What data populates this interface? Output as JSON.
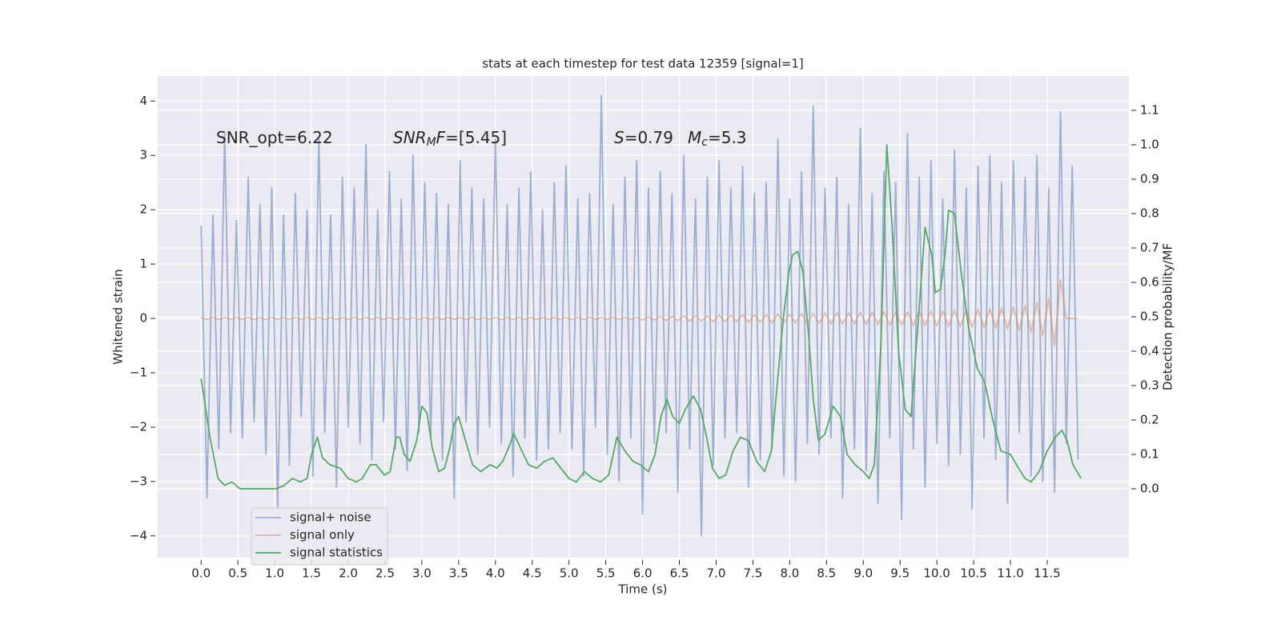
{
  "chart_data": {
    "type": "line",
    "title": "stats at each timestep for test data 12359 [signal=1]",
    "x_label": "Time (s)",
    "y_label": "Whitened strain",
    "y2_label": "Detection probability/MF",
    "xlim": [
      -0.59,
      12.61
    ],
    "ylim": [
      -4.4,
      4.46
    ],
    "y2lim": [
      -0.2,
      1.2
    ],
    "xticks": [
      {
        "value": 0,
        "label": "0.0"
      },
      {
        "value": 0.5,
        "label": "0.5"
      },
      {
        "value": 1,
        "label": "1.0"
      },
      {
        "value": 1.5,
        "label": "1.5"
      },
      {
        "value": 2,
        "label": "2.0"
      },
      {
        "value": 2.5,
        "label": "2.5"
      },
      {
        "value": 3,
        "label": "3.0"
      },
      {
        "value": 3.5,
        "label": "3.5"
      },
      {
        "value": 4,
        "label": "4.0"
      },
      {
        "value": 4.5,
        "label": "4.5"
      },
      {
        "value": 5,
        "label": "5.0"
      },
      {
        "value": 5.5,
        "label": "5.5"
      },
      {
        "value": 6,
        "label": "6.0"
      },
      {
        "value": 6.5,
        "label": "6.5"
      },
      {
        "value": 7,
        "label": "7.0"
      },
      {
        "value": 7.5,
        "label": "7.5"
      },
      {
        "value": 8,
        "label": "8.0"
      },
      {
        "value": 8.5,
        "label": "8.5"
      },
      {
        "value": 9,
        "label": "9.0"
      },
      {
        "value": 9.5,
        "label": "9.5"
      },
      {
        "value": 10,
        "label": "10.0"
      },
      {
        "value": 10.5,
        "label": "10.5"
      },
      {
        "value": 11,
        "label": "11.0"
      },
      {
        "value": 11.5,
        "label": "11.5"
      }
    ],
    "yticks": [
      {
        "value": -4,
        "label": "−4"
      },
      {
        "value": -3,
        "label": "−3"
      },
      {
        "value": -2,
        "label": "−2"
      },
      {
        "value": -1,
        "label": "−1"
      },
      0,
      1,
      2,
      3,
      4
    ],
    "y2ticks": [
      {
        "value": 0,
        "label": "0.0"
      },
      {
        "value": 0.1,
        "label": "0.1"
      },
      {
        "value": 0.2,
        "label": "0.2"
      },
      {
        "value": 0.3,
        "label": "0.3"
      },
      {
        "value": 0.4,
        "label": "0.4"
      },
      {
        "value": 0.5,
        "label": "0.5"
      },
      {
        "value": 0.6,
        "label": "0.6"
      },
      {
        "value": 0.7,
        "label": "0.7"
      },
      {
        "value": 0.8,
        "label": "0.8"
      },
      {
        "value": 0.9,
        "label": "0.9"
      },
      {
        "value": 1,
        "label": "1.0"
      },
      {
        "value": 1.1,
        "label": "1.1"
      }
    ],
    "grid": true,
    "legend": "lower left",
    "annotations": [
      {
        "parts": [
          {
            "text": "SNR_opt=6.22"
          }
        ]
      },
      {
        "parts": [
          {
            "text": "SNR",
            "italic": true
          },
          {
            "text": "M",
            "italic": true,
            "sub": true
          },
          {
            "text": "F",
            "italic": true
          },
          {
            "text": "=[5.45]"
          }
        ]
      },
      {
        "parts": [
          {
            "text": "S",
            "italic": true
          },
          {
            "text": "=0.79"
          }
        ]
      },
      {
        "parts": [
          {
            "text": "M",
            "italic": true
          },
          {
            "text": "c",
            "italic": true,
            "sub": true
          },
          {
            "text": "=5.3"
          }
        ]
      }
    ],
    "x": [
      0,
      0.08,
      0.16,
      0.24,
      0.32,
      0.4,
      0.48,
      0.56,
      0.64,
      0.72,
      0.8,
      0.88,
      0.96,
      1.04,
      1.12,
      1.2,
      1.28,
      1.36,
      1.44,
      1.52,
      1.6,
      1.68,
      1.76,
      1.84,
      1.92,
      2,
      2.08,
      2.16,
      2.24,
      2.32,
      2.4,
      2.48,
      2.56,
      2.64,
      2.72,
      2.8,
      2.88,
      2.96,
      3.04,
      3.12,
      3.2,
      3.28,
      3.36,
      3.44,
      3.52,
      3.6,
      3.68,
      3.76,
      3.84,
      3.92,
      4,
      4.08,
      4.16,
      4.24,
      4.32,
      4.4,
      4.48,
      4.56,
      4.64,
      4.72,
      4.8,
      4.88,
      4.96,
      5.04,
      5.12,
      5.2,
      5.28,
      5.36,
      5.44,
      5.52,
      5.6,
      5.68,
      5.76,
      5.84,
      5.92,
      6,
      6.08,
      6.16,
      6.24,
      6.32,
      6.4,
      6.48,
      6.56,
      6.64,
      6.72,
      6.8,
      6.88,
      6.96,
      7.04,
      7.12,
      7.2,
      7.28,
      7.36,
      7.44,
      7.52,
      7.6,
      7.68,
      7.76,
      7.84,
      7.92,
      8,
      8.08,
      8.16,
      8.24,
      8.32,
      8.4,
      8.48,
      8.56,
      8.64,
      8.72,
      8.8,
      8.88,
      8.96,
      9.04,
      9.12,
      9.2,
      9.28,
      9.36,
      9.44,
      9.52,
      9.6,
      9.68,
      9.76,
      9.84,
      9.92,
      10,
      10.08,
      10.16,
      10.24,
      10.32,
      10.4,
      10.48,
      10.56,
      10.64,
      10.72,
      10.8,
      10.88,
      10.96,
      11.04,
      11.12,
      11.2,
      11.28,
      11.36,
      11.44,
      11.52,
      11.6,
      11.68,
      11.76,
      11.84,
      11.92
    ],
    "series": [
      {
        "name": "signal+ noise",
        "color": "#4c72b0",
        "opacity": 0.5,
        "values": [
          1.7,
          -3.3,
          1.9,
          -2.4,
          3.4,
          -2.1,
          1.8,
          -2.2,
          2.6,
          -1.9,
          2.1,
          -2.5,
          2.4,
          -3.5,
          1.9,
          -2.7,
          2.3,
          -1.8,
          2.0,
          -2.9,
          3.3,
          -2.1,
          1.9,
          -3.1,
          2.6,
          -2.0,
          2.4,
          -2.3,
          3.2,
          -2.6,
          2.0,
          -1.9,
          2.7,
          -2.4,
          2.2,
          -2.8,
          3.0,
          -2.1,
          2.5,
          -2.2,
          2.3,
          -2.6,
          2.1,
          -3.3,
          2.9,
          -1.9,
          2.4,
          -2.5,
          2.2,
          -2.0,
          3.3,
          -2.3,
          2.1,
          -2.9,
          2.4,
          -2.2,
          2.7,
          -2.6,
          2.0,
          -2.4,
          2.5,
          -2.1,
          2.8,
          -2.4,
          2.2,
          -2.9,
          2.3,
          -2.0,
          4.1,
          -2.5,
          2.1,
          -3.0,
          2.6,
          -2.2,
          2.9,
          -3.6,
          2.4,
          -2.3,
          2.7,
          -2.1,
          2.3,
          -3.2,
          3.0,
          -2.4,
          2.2,
          -4.0,
          2.6,
          -2.7,
          2.9,
          -2.2,
          2.4,
          -2.1,
          2.8,
          -3.1,
          2.3,
          -2.6,
          2.5,
          -2.4,
          3.3,
          -2.9,
          2.2,
          -3.0,
          2.7,
          -2.3,
          3.9,
          -2.5,
          2.4,
          -2.2,
          2.6,
          -3.3,
          2.1,
          -2.4,
          3.5,
          -2.8,
          2.3,
          -3.4,
          2.7,
          -2.2,
          2.5,
          -3.7,
          3.4,
          -2.4,
          2.6,
          -3.1,
          2.9,
          -2.3,
          2.2,
          -2.7,
          3.1,
          -2.5,
          2.4,
          -3.5,
          2.8,
          -2.2,
          3.0,
          -2.6,
          2.5,
          -3.4,
          2.9,
          -2.1,
          2.6,
          -2.9,
          3.0,
          -3.0,
          2.4,
          -3.2,
          3.8,
          -2.3,
          2.8,
          -2.6
        ]
      },
      {
        "name": "signal only",
        "color": "#dd8452",
        "opacity": 0.5,
        "values": [
          0.02,
          -0.02,
          0.02,
          -0.02,
          0.02,
          -0.02,
          0.02,
          -0.02,
          0.02,
          -0.02,
          0.02,
          -0.02,
          0.02,
          -0.02,
          0.02,
          -0.02,
          0.02,
          -0.02,
          0.02,
          -0.02,
          0.02,
          -0.02,
          0.02,
          -0.02,
          0.02,
          -0.02,
          0.02,
          -0.02,
          0.02,
          -0.02,
          0.02,
          -0.02,
          0.02,
          -0.02,
          0.02,
          -0.02,
          0.02,
          -0.02,
          0.02,
          -0.02,
          0.02,
          -0.02,
          0.02,
          -0.02,
          0.02,
          -0.02,
          0.02,
          -0.02,
          0.02,
          -0.02,
          0.02,
          -0.02,
          0.02,
          -0.02,
          0.02,
          -0.02,
          0.02,
          -0.02,
          0.02,
          -0.02,
          0.02,
          -0.02,
          0.02,
          -0.02,
          0.02,
          -0.02,
          0.02,
          -0.02,
          0.02,
          -0.02,
          0.02,
          -0.02,
          0.02,
          -0.02,
          0.02,
          -0.03,
          0.03,
          -0.03,
          0.04,
          -0.04,
          0.04,
          -0.04,
          0.05,
          -0.05,
          0.05,
          -0.05,
          0.05,
          -0.06,
          0.06,
          -0.06,
          0.06,
          -0.06,
          0.07,
          -0.07,
          0.07,
          -0.07,
          0.07,
          -0.08,
          0.08,
          -0.08,
          0.08,
          -0.08,
          0.09,
          -0.09,
          0.09,
          -0.09,
          0.1,
          -0.1,
          0.1,
          -0.1,
          0.1,
          -0.1,
          0.11,
          -0.11,
          0.11,
          -0.11,
          0.12,
          -0.12,
          0.12,
          -0.12,
          0.12,
          -0.13,
          0.13,
          -0.13,
          0.14,
          -0.14,
          0.14,
          -0.15,
          0.15,
          -0.15,
          0.16,
          -0.16,
          0.17,
          -0.17,
          0.18,
          -0.18,
          0.19,
          -0.19,
          0.21,
          -0.22,
          0.24,
          -0.26,
          0.29,
          -0.32,
          0.37,
          -0.5,
          0.72,
          0,
          0,
          0
        ]
      },
      {
        "name": "signal statistics",
        "color": "#55a868",
        "axis": "y2",
        "x": [
          0,
          0.12,
          0.23,
          0.32,
          0.42,
          0.53,
          0.7,
          0.86,
          1.02,
          1.13,
          1.24,
          1.35,
          1.44,
          1.5,
          1.58,
          1.65,
          1.75,
          1.89,
          2,
          2.11,
          2.19,
          2.3,
          2.38,
          2.49,
          2.57,
          2.65,
          2.7,
          2.76,
          2.84,
          2.93,
          3,
          3.07,
          3.14,
          3.23,
          3.31,
          3.38,
          3.44,
          3.5,
          3.58,
          3.69,
          3.8,
          3.93,
          4.02,
          4.1,
          4.18,
          4.25,
          4.36,
          4.45,
          4.56,
          4.67,
          4.78,
          4.89,
          5,
          5.1,
          5.21,
          5.32,
          5.43,
          5.54,
          5.65,
          5.76,
          5.87,
          5.97,
          6.08,
          6.17,
          6.25,
          6.33,
          6.41,
          6.5,
          6.58,
          6.69,
          6.79,
          6.87,
          6.95,
          7.04,
          7.13,
          7.23,
          7.33,
          7.44,
          7.55,
          7.66,
          7.75,
          7.82,
          7.91,
          7.99,
          8.04,
          8.11,
          8.18,
          8.26,
          8.32,
          8.39,
          8.48,
          8.59,
          8.69,
          8.78,
          8.89,
          9,
          9.08,
          9.15,
          9.24,
          9.32,
          9.39,
          9.48,
          9.57,
          9.65,
          9.73,
          9.84,
          9.93,
          9.98,
          10.05,
          10.11,
          10.16,
          10.24,
          10.33,
          10.43,
          10.55,
          10.65,
          10.76,
          10.87,
          11,
          11.11,
          11.2,
          11.28,
          11.39,
          11.5,
          11.61,
          11.7,
          11.77,
          11.85,
          11.96
        ],
        "values": [
          0.32,
          0.15,
          0.03,
          0.01,
          0.02,
          0,
          0,
          0,
          0,
          0.01,
          0.03,
          0.02,
          0.03,
          0.1,
          0.15,
          0.09,
          0.07,
          0.06,
          0.03,
          0.02,
          0.03,
          0.07,
          0.07,
          0.04,
          0.05,
          0.15,
          0.15,
          0.1,
          0.08,
          0.14,
          0.24,
          0.22,
          0.12,
          0.05,
          0.06,
          0.12,
          0.19,
          0.21,
          0.15,
          0.07,
          0.05,
          0.07,
          0.06,
          0.08,
          0.12,
          0.16,
          0.11,
          0.07,
          0.06,
          0.08,
          0.09,
          0.06,
          0.03,
          0.02,
          0.05,
          0.03,
          0.02,
          0.04,
          0.15,
          0.11,
          0.08,
          0.07,
          0.05,
          0.1,
          0.21,
          0.26,
          0.21,
          0.19,
          0.23,
          0.27,
          0.23,
          0.15,
          0.06,
          0.03,
          0.04,
          0.11,
          0.15,
          0.14,
          0.08,
          0.05,
          0.11,
          0.28,
          0.49,
          0.63,
          0.68,
          0.69,
          0.63,
          0.44,
          0.26,
          0.14,
          0.16,
          0.24,
          0.21,
          0.1,
          0.07,
          0.05,
          0.03,
          0.07,
          0.42,
          1.0,
          0.77,
          0.4,
          0.23,
          0.21,
          0.44,
          0.76,
          0.68,
          0.57,
          0.58,
          0.68,
          0.81,
          0.8,
          0.63,
          0.47,
          0.35,
          0.31,
          0.2,
          0.11,
          0.1,
          0.06,
          0.03,
          0.02,
          0.05,
          0.11,
          0.15,
          0.17,
          0.14,
          0.07,
          0.03
        ]
      }
    ]
  }
}
